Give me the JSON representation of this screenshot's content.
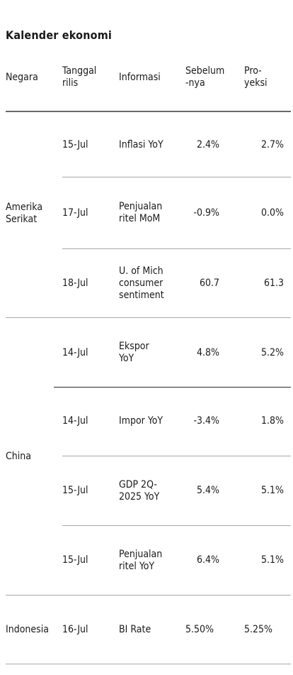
{
  "title": "Kalender ekonomi",
  "headers": {
    "negara": "Negara",
    "tanggal_line1": "Tanggal",
    "tanggal_line2": "rilis",
    "informasi": "Informasi",
    "sebelum_line1": "Sebelum",
    "sebelum_line2": "-nya",
    "proyeksi_line1": "Pro-",
    "proyeksi_line2": "yeksi"
  },
  "countries": [
    "Amerika Serikat",
    "China",
    "Indonesia"
  ],
  "rows": [
    {
      "date": "15-Jul",
      "info": [
        "Inflasi YoY"
      ],
      "prev": "2.4%",
      "proj": "2.7%"
    },
    {
      "date": "17-Jul",
      "info": [
        "Penjualan",
        "ritel MoM"
      ],
      "prev": "-0.9%",
      "proj": "0.0%"
    },
    {
      "date": "18-Jul",
      "info": [
        "U. of Mich",
        "consumer",
        "sentiment"
      ],
      "prev": "60.7",
      "proj": "61.3"
    },
    {
      "date": "14-Jul",
      "info": [
        "Ekspor",
        "YoY"
      ],
      "prev": "4.8%",
      "proj": "5.2%"
    },
    {
      "date": "14-Jul",
      "info": [
        "Impor YoY"
      ],
      "prev": "-3.4%",
      "proj": "1.8%"
    },
    {
      "date": "15-Jul",
      "info": [
        "GDP 2Q-",
        "2025 YoY"
      ],
      "prev": "5.4%",
      "proj": "5.1%"
    },
    {
      "date": "15-Jul",
      "info": [
        "Penjualan",
        "ritel YoY"
      ],
      "prev": "6.4%",
      "proj": "5.1%"
    },
    {
      "date": "16-Jul",
      "info": [
        "BI Rate"
      ],
      "prev": "5.50%",
      "proj": "5.25%"
    }
  ]
}
